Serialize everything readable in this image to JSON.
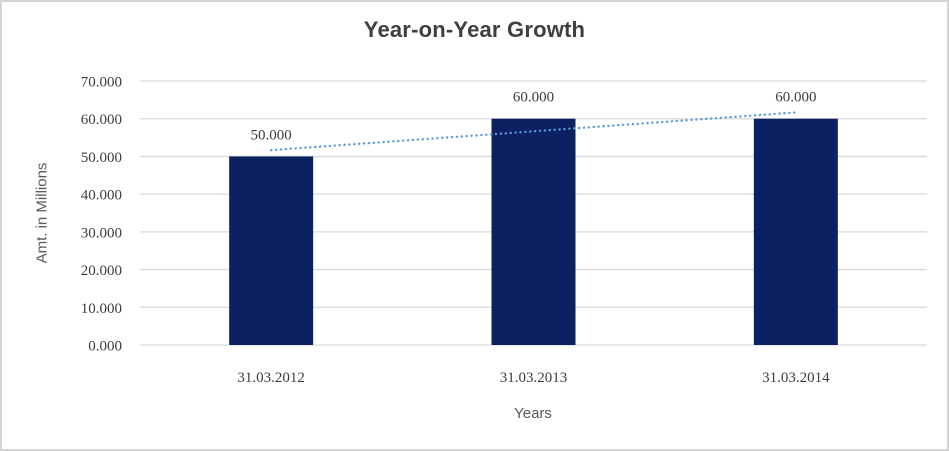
{
  "chart_data": {
    "type": "bar",
    "title": "Year-on-Year Growth",
    "xlabel": "Years",
    "ylabel": "Amt. in Millions",
    "categories": [
      "31.03.2012",
      "31.03.2013",
      "31.03.2014"
    ],
    "values": [
      50000,
      60000,
      60000
    ],
    "value_labels": [
      "50.000",
      "60.000",
      "60.000"
    ],
    "ylim": [
      0,
      70000
    ],
    "ytick_step": 10000,
    "ytick_labels": [
      "0.000",
      "10.000",
      "20.000",
      "30.000",
      "40.000",
      "50.000",
      "60.000",
      "70.000"
    ],
    "grid": true,
    "legend": "none",
    "trendline": {
      "type": "linear",
      "style": "dotted",
      "endpoint_values": [
        51667,
        61667
      ],
      "color": "#5b9bd5"
    },
    "colors": {
      "bar": "#0b2161",
      "gridline": "#d9d9d9",
      "chart_border": "#d4d4d4",
      "background": "#ffffff",
      "title_text": "#3f3f3f",
      "tick_text": "#3d3d3d",
      "axis_title_text": "#595959"
    }
  }
}
